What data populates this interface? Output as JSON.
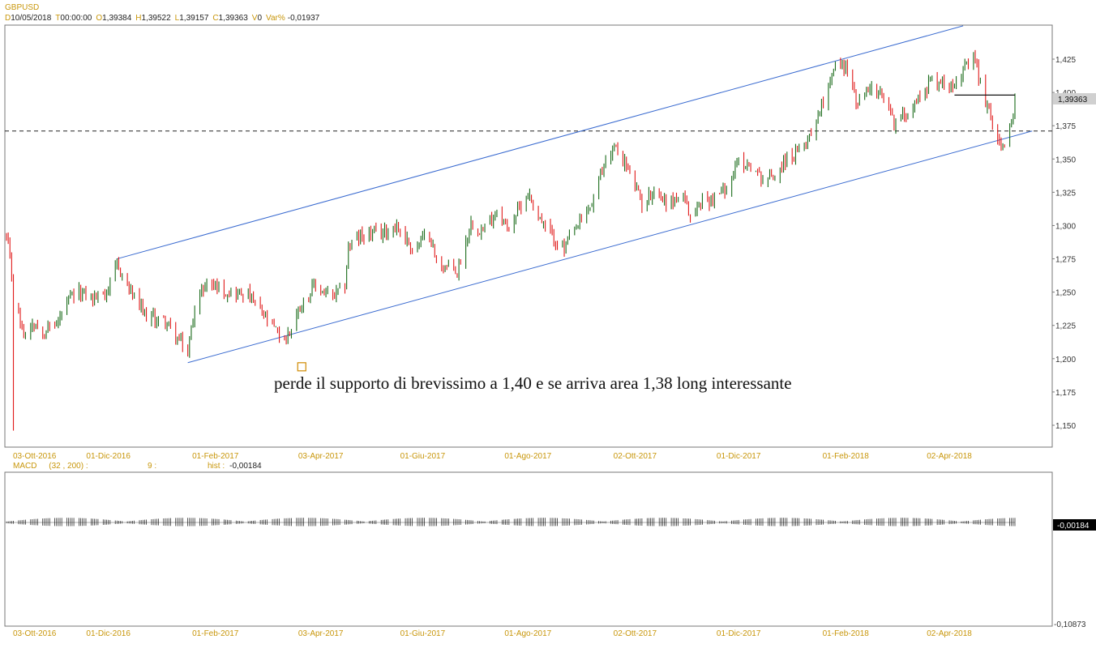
{
  "header": {
    "symbol": "GBPUSD",
    "date_key": "D",
    "date": "10/05/2018",
    "time_key": "T",
    "time": "00:00:00",
    "open_key": "O",
    "open": "1,39384",
    "high_key": "H",
    "high": "1,39522",
    "low_key": "L",
    "low": "1,39157",
    "close_key": "C",
    "close": "1,39363",
    "volume_key": "V",
    "volume": "0",
    "var_key": "Var%",
    "var": "-0,01937"
  },
  "price_badge": "1,39363",
  "macd_header": {
    "name": "MACD",
    "params": "(32 , 200) :",
    "signal": "9 :",
    "hist_key": "hist :",
    "hist": "-0,00184"
  },
  "macd_badge": "-0,00184",
  "macd_bottom_label": "-0,10873",
  "annotation": "perde il supporto di brevissimo a 1,40 e se arriva area 1,38 long interessante",
  "colors": {
    "up": "#1a6b1a",
    "down": "#e01a1a",
    "channel": "#3a6bd0",
    "dashed": "#222222",
    "labels": "#c8960a"
  },
  "chart_data": {
    "type": "candlestick",
    "instrument": "GBPUSD",
    "timeframe": "D",
    "x_range": [
      "2016-10-03",
      "2018-05-10"
    ],
    "ylim": [
      1.14,
      1.455
    ],
    "y_ticks": [
      "1,150",
      "1,175",
      "1,200",
      "1,225",
      "1,250",
      "1,275",
      "1,300",
      "1,325",
      "1,350",
      "1,375",
      "1,400",
      "1,425"
    ],
    "x_tick_labels": [
      "03-Ott-2016",
      "01-Dic-2016",
      "01-Feb-2017",
      "03-Apr-2017",
      "01-Giu-2017",
      "01-Ago-2017",
      "02-Ott-2017",
      "01-Dic-2017",
      "01-Feb-2018",
      "02-Apr-2018"
    ],
    "x_tick_dates": [
      "2016-10-03",
      "2016-12-01",
      "2017-02-01",
      "2017-04-03",
      "2017-06-01",
      "2017-08-01",
      "2017-10-02",
      "2017-12-01",
      "2018-02-01",
      "2018-04-02"
    ],
    "price_path": [
      [
        "2016-10-03",
        1.29
      ],
      [
        "2016-10-05",
        1.275
      ],
      [
        "2016-10-06",
        1.262
      ],
      [
        "2016-10-07",
        1.243
      ],
      [
        "2016-10-10",
        1.234
      ],
      [
        "2016-10-12",
        1.222
      ],
      [
        "2016-10-14",
        1.218
      ],
      [
        "2016-10-18",
        1.228
      ],
      [
        "2016-10-25",
        1.221
      ],
      [
        "2016-11-01",
        1.226
      ],
      [
        "2016-11-09",
        1.245
      ],
      [
        "2016-11-15",
        1.25
      ],
      [
        "2016-11-22",
        1.245
      ],
      [
        "2016-12-01",
        1.252
      ],
      [
        "2016-12-06",
        1.27
      ],
      [
        "2016-12-15",
        1.248
      ],
      [
        "2016-12-22",
        1.232
      ],
      [
        "2017-01-03",
        1.228
      ],
      [
        "2017-01-10",
        1.215
      ],
      [
        "2017-01-16",
        1.204
      ],
      [
        "2017-01-20",
        1.24
      ],
      [
        "2017-01-27",
        1.258
      ],
      [
        "2017-02-01",
        1.255
      ],
      [
        "2017-02-08",
        1.25
      ],
      [
        "2017-02-20",
        1.248
      ],
      [
        "2017-03-01",
        1.232
      ],
      [
        "2017-03-10",
        1.218
      ],
      [
        "2017-03-14",
        1.215
      ],
      [
        "2017-03-22",
        1.24
      ],
      [
        "2017-03-31",
        1.255
      ],
      [
        "2017-04-10",
        1.245
      ],
      [
        "2017-04-17",
        1.256
      ],
      [
        "2017-04-19",
        1.285
      ],
      [
        "2017-04-28",
        1.293
      ],
      [
        "2017-05-10",
        1.295
      ],
      [
        "2017-05-17",
        1.3
      ],
      [
        "2017-05-26",
        1.283
      ],
      [
        "2017-06-05",
        1.294
      ],
      [
        "2017-06-09",
        1.272
      ],
      [
        "2017-06-21",
        1.265
      ],
      [
        "2017-06-29",
        1.302
      ],
      [
        "2017-07-06",
        1.296
      ],
      [
        "2017-07-14",
        1.312
      ],
      [
        "2017-07-20",
        1.298
      ],
      [
        "2017-08-01",
        1.324
      ],
      [
        "2017-08-10",
        1.3
      ],
      [
        "2017-08-22",
        1.282
      ],
      [
        "2017-08-25",
        1.29
      ],
      [
        "2017-09-07",
        1.316
      ],
      [
        "2017-09-15",
        1.35
      ],
      [
        "2017-09-20",
        1.359
      ],
      [
        "2017-09-27",
        1.345
      ],
      [
        "2017-10-06",
        1.316
      ],
      [
        "2017-10-13",
        1.327
      ],
      [
        "2017-10-20",
        1.318
      ],
      [
        "2017-10-30",
        1.321
      ],
      [
        "2017-11-03",
        1.306
      ],
      [
        "2017-11-10",
        1.319
      ],
      [
        "2017-11-17",
        1.32
      ],
      [
        "2017-11-24",
        1.33
      ],
      [
        "2017-12-01",
        1.348
      ],
      [
        "2017-12-08",
        1.345
      ],
      [
        "2017-12-15",
        1.335
      ],
      [
        "2017-12-22",
        1.338
      ],
      [
        "2017-12-29",
        1.35
      ],
      [
        "2018-01-05",
        1.355
      ],
      [
        "2018-01-12",
        1.37
      ],
      [
        "2018-01-19",
        1.395
      ],
      [
        "2018-01-25",
        1.42
      ],
      [
        "2018-02-01",
        1.42
      ],
      [
        "2018-02-08",
        1.39
      ],
      [
        "2018-02-15",
        1.405
      ],
      [
        "2018-02-23",
        1.395
      ],
      [
        "2018-03-01",
        1.377
      ],
      [
        "2018-03-08",
        1.385
      ],
      [
        "2018-03-15",
        1.395
      ],
      [
        "2018-03-23",
        1.41
      ],
      [
        "2018-04-02",
        1.406
      ],
      [
        "2018-04-09",
        1.415
      ],
      [
        "2018-04-17",
        1.425
      ],
      [
        "2018-04-20",
        1.405
      ],
      [
        "2018-04-27",
        1.378
      ],
      [
        "2018-05-04",
        1.355
      ],
      [
        "2018-05-10",
        1.3936
      ]
    ],
    "flash_crash": {
      "date": "2016-10-07",
      "low": 1.146
    },
    "channel_upper": [
      [
        "2016-12-06",
        1.275
      ],
      [
        "2018-04-10",
        1.45
      ]
    ],
    "channel_lower": [
      [
        "2017-01-16",
        1.197
      ],
      [
        "2018-05-20",
        1.371
      ]
    ],
    "dashed_level": 1.371,
    "short_support": {
      "level": 1.398,
      "from": "2018-04-05",
      "to": "2018-05-10"
    },
    "marker": {
      "date": "2017-03-23",
      "price": 1.2
    },
    "macd": {
      "name": "MACD",
      "params": [
        32,
        200
      ],
      "signal": 9,
      "hist": -0.00184,
      "bottom_label": -0.10873
    }
  }
}
